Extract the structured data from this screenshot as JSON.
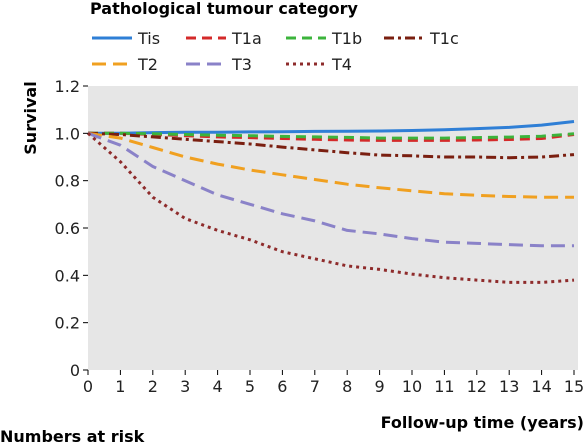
{
  "chart_data": {
    "type": "line",
    "legend_title": "Pathological tumour category",
    "xlabel": "Follow-up time (years)",
    "ylabel": "Survival",
    "xlim": [
      0,
      15
    ],
    "ylim": [
      0,
      1.2
    ],
    "x_ticks": [
      "0",
      "1",
      "2",
      "3",
      "4",
      "5",
      "6",
      "7",
      "8",
      "9",
      "10",
      "11",
      "12",
      "13",
      "14",
      "15"
    ],
    "y_ticks": [
      "0",
      "0.2",
      "0.4",
      "0.6",
      "0.8",
      "1.0",
      "1.2"
    ],
    "grid": false,
    "background": "#e6e6e6",
    "legend_position": "top",
    "series": [
      {
        "name": "Tis",
        "color": "#2f7fd6",
        "dash": "solid",
        "x": [
          0,
          1,
          2,
          3,
          4,
          5,
          6,
          7,
          8,
          9,
          10,
          11,
          12,
          13,
          14,
          15
        ],
        "values": [
          1.0,
          1.0,
          1.003,
          1.005,
          1.005,
          1.006,
          1.007,
          1.008,
          1.009,
          1.01,
          1.012,
          1.015,
          1.02,
          1.025,
          1.035,
          1.05
        ]
      },
      {
        "name": "T1a",
        "color": "#d42a2a",
        "dash": "dash",
        "x": [
          0,
          1,
          2,
          3,
          4,
          5,
          6,
          7,
          8,
          9,
          10,
          11,
          12,
          13,
          14,
          15
        ],
        "values": [
          1.0,
          1.0,
          0.995,
          0.99,
          0.985,
          0.982,
          0.978,
          0.975,
          0.972,
          0.97,
          0.97,
          0.97,
          0.972,
          0.974,
          0.978,
          0.995
        ]
      },
      {
        "name": "T1b",
        "color": "#3cb43c",
        "dash": "dash",
        "x": [
          0,
          1,
          2,
          3,
          4,
          5,
          6,
          7,
          8,
          9,
          10,
          11,
          12,
          13,
          14,
          15
        ],
        "values": [
          1.0,
          1.0,
          0.998,
          0.995,
          0.992,
          0.99,
          0.987,
          0.985,
          0.983,
          0.98,
          0.98,
          0.98,
          0.982,
          0.984,
          0.988,
          0.998
        ]
      },
      {
        "name": "T1c",
        "color": "#7a1f10",
        "dash": "dashdot",
        "x": [
          0,
          1,
          2,
          3,
          4,
          5,
          6,
          7,
          8,
          9,
          10,
          11,
          12,
          13,
          14,
          15
        ],
        "values": [
          1.0,
          0.995,
          0.985,
          0.975,
          0.965,
          0.955,
          0.942,
          0.93,
          0.918,
          0.908,
          0.905,
          0.9,
          0.9,
          0.897,
          0.9,
          0.91
        ]
      },
      {
        "name": "T2",
        "color": "#f0a020",
        "dash": "longdash",
        "x": [
          0,
          1,
          2,
          3,
          4,
          5,
          6,
          7,
          8,
          9,
          10,
          11,
          12,
          13,
          14,
          15
        ],
        "values": [
          1.0,
          0.98,
          0.94,
          0.9,
          0.87,
          0.845,
          0.825,
          0.805,
          0.785,
          0.77,
          0.757,
          0.745,
          0.738,
          0.733,
          0.73,
          0.73
        ]
      },
      {
        "name": "T3",
        "color": "#8a82c8",
        "dash": "longdash",
        "x": [
          0,
          1,
          2,
          3,
          4,
          5,
          6,
          7,
          8,
          9,
          10,
          11,
          12,
          13,
          14,
          15
        ],
        "values": [
          1.0,
          0.95,
          0.86,
          0.8,
          0.74,
          0.7,
          0.66,
          0.63,
          0.59,
          0.575,
          0.555,
          0.54,
          0.535,
          0.53,
          0.525,
          0.525
        ]
      },
      {
        "name": "T4",
        "color": "#8e2b2b",
        "dash": "dot",
        "x": [
          0,
          1,
          2,
          3,
          4,
          5,
          6,
          7,
          8,
          9,
          10,
          11,
          12,
          13,
          14,
          15
        ],
        "values": [
          1.0,
          0.88,
          0.73,
          0.64,
          0.59,
          0.55,
          0.5,
          0.47,
          0.44,
          0.425,
          0.405,
          0.39,
          0.38,
          0.37,
          0.37,
          0.38
        ]
      }
    ]
  },
  "footer": {
    "numbers_at_risk": "Numbers at risk"
  }
}
